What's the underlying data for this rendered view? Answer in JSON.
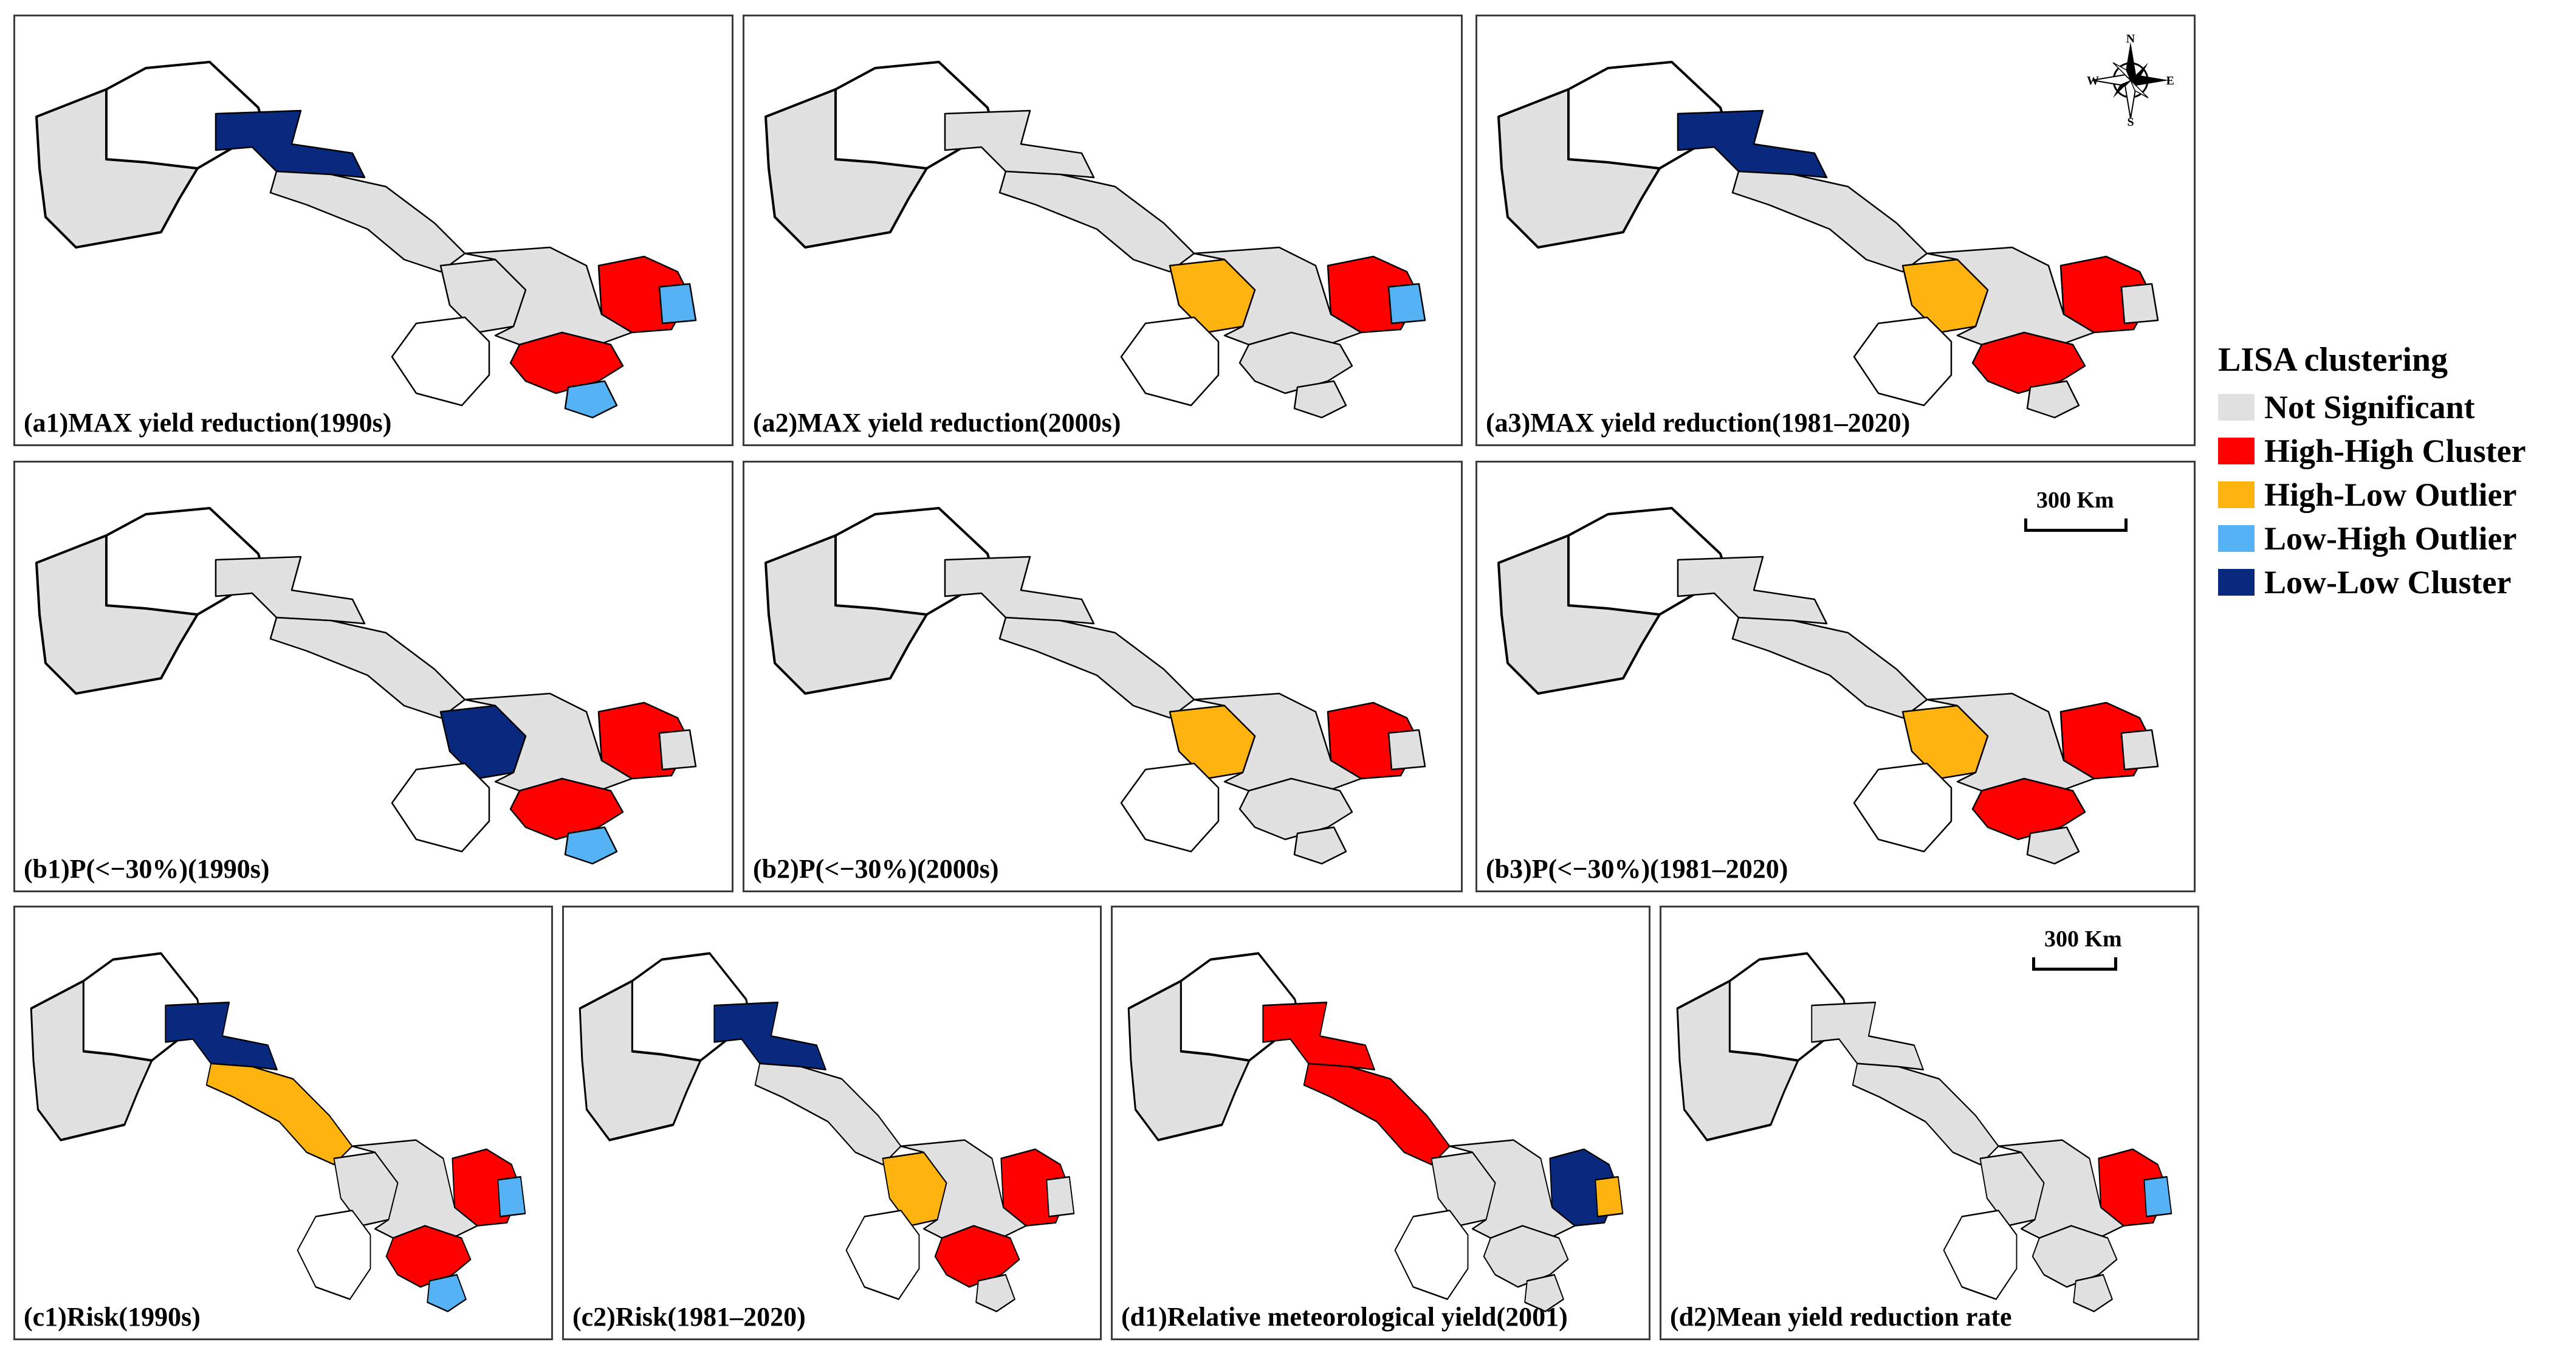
{
  "panels": [
    {
      "id": "a1",
      "caption": "(a1)MAX yield reduction(1990s)",
      "regions": {
        "west": "ns",
        "strip": "ll",
        "corridor": "ns",
        "sw": "ns",
        "center": "ns",
        "east": "hh",
        "east_edge": "lh",
        "south": "hh",
        "south_edge": "lh"
      }
    },
    {
      "id": "a2",
      "caption": "(a2)MAX yield reduction(2000s)",
      "regions": {
        "west": "ns",
        "strip": "ns",
        "corridor": "ns",
        "sw": "ns",
        "center": "hl",
        "east": "hh",
        "east_edge": "lh",
        "south": "ns",
        "south_edge": "ns"
      }
    },
    {
      "id": "a3",
      "caption": "(a3)MAX yield reduction(1981–2020)",
      "regions": {
        "west": "ns",
        "strip": "ll",
        "corridor": "ns",
        "sw": "ns",
        "center": "hl",
        "east": "hh",
        "east_edge": "ns",
        "south": "hh",
        "south_edge": "ns"
      }
    },
    {
      "id": "b1",
      "caption": "(b1)P(<−30%)(1990s)",
      "regions": {
        "west": "ns",
        "strip": "ns",
        "corridor": "ns",
        "sw": "ns",
        "center": "ll",
        "east": "hh",
        "east_edge": "ns",
        "south": "hh",
        "south_edge": "lh"
      }
    },
    {
      "id": "b2",
      "caption": "(b2)P(<−30%)(2000s)",
      "regions": {
        "west": "ns",
        "strip": "ns",
        "corridor": "ns",
        "sw": "ns",
        "center": "hl",
        "east": "hh",
        "east_edge": "ns",
        "south": "ns",
        "south_edge": "ns"
      }
    },
    {
      "id": "b3",
      "caption": "(b3)P(<−30%)(1981–2020)",
      "regions": {
        "west": "ns",
        "strip": "ns",
        "corridor": "ns",
        "sw": "ns",
        "center": "hl",
        "east": "hh",
        "east_edge": "ns",
        "south": "hh",
        "south_edge": "ns"
      }
    },
    {
      "id": "c1",
      "caption": "(c1)Risk(1990s)",
      "regions": {
        "west": "ns",
        "strip": "ll",
        "corridor": "hl",
        "sw": "ns",
        "center": "ns",
        "east": "hh",
        "east_edge": "lh",
        "south": "hh",
        "south_edge": "lh"
      }
    },
    {
      "id": "c2",
      "caption": "(c2)Risk(1981–2020)",
      "regions": {
        "west": "ns",
        "strip": "ll",
        "corridor": "ns",
        "sw": "ns",
        "center": "hl",
        "east": "hh",
        "east_edge": "ns",
        "south": "hh",
        "south_edge": "ns"
      }
    },
    {
      "id": "d1",
      "caption": "(d1)Relative meteorological yield(2001)",
      "regions": {
        "west": "ns",
        "strip": "hh",
        "corridor": "hh",
        "sw": "ns",
        "center": "ns",
        "east": "ll",
        "east_edge": "hl",
        "south": "ns",
        "south_edge": "ns"
      }
    },
    {
      "id": "d2",
      "caption": "(d2)Mean yield reduction rate",
      "regions": {
        "west": "ns",
        "strip": "ns",
        "corridor": "ns",
        "sw": "ns",
        "center": "ns",
        "east": "hh",
        "east_edge": "lh",
        "south": "ns",
        "south_edge": "ns"
      }
    }
  ],
  "compass": {
    "n": "N",
    "s": "S",
    "e": "E",
    "w": "W"
  },
  "scale_bar_label": "300 Km",
  "legend": {
    "title": "LISA clustering",
    "items": [
      {
        "key": "ns",
        "label": "Not Significant",
        "color": "#e1e1e1"
      },
      {
        "key": "hh",
        "label": "High-High Cluster",
        "color": "#ff0000"
      },
      {
        "key": "hl",
        "label": "High-Low Outlier",
        "color": "#ffb30f"
      },
      {
        "key": "lh",
        "label": "Low-High Outlier",
        "color": "#55b3f5"
      },
      {
        "key": "ll",
        "label": "Low-Low Cluster",
        "color": "#08297d"
      }
    ]
  }
}
